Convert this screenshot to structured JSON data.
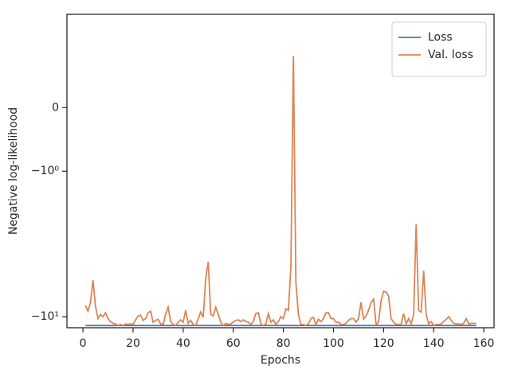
{
  "chart_data": {
    "type": "line",
    "xlabel": "Epochs",
    "ylabel": "Negative log-likelihood",
    "x": [
      1,
      2,
      3,
      4,
      5,
      6,
      7,
      8,
      9,
      10,
      11,
      12,
      13,
      14,
      15,
      16,
      17,
      18,
      19,
      20,
      21,
      22,
      23,
      24,
      25,
      26,
      27,
      28,
      29,
      30,
      31,
      32,
      33,
      34,
      35,
      36,
      37,
      38,
      39,
      40,
      41,
      42,
      43,
      44,
      45,
      46,
      47,
      48,
      49,
      50,
      51,
      52,
      53,
      54,
      55,
      56,
      57,
      58,
      59,
      60,
      61,
      62,
      63,
      64,
      65,
      66,
      67,
      68,
      69,
      70,
      71,
      72,
      73,
      74,
      75,
      76,
      77,
      78,
      79,
      80,
      81,
      82,
      83,
      84,
      85,
      86,
      87,
      88,
      89,
      90,
      91,
      92,
      93,
      94,
      95,
      96,
      97,
      98,
      99,
      100,
      101,
      102,
      103,
      104,
      105,
      106,
      107,
      108,
      109,
      110,
      111,
      112,
      113,
      114,
      115,
      116,
      117,
      118,
      119,
      120,
      121,
      122,
      123,
      124,
      125,
      126,
      127,
      128,
      129,
      130,
      131,
      132,
      133,
      134,
      135,
      136,
      137,
      138,
      139,
      140,
      141,
      142,
      143,
      144,
      145,
      146,
      147,
      148,
      149,
      150,
      151,
      152,
      153,
      154,
      155,
      156,
      157
    ],
    "series": [
      {
        "name": "Loss",
        "color": "#4c72b0",
        "values": [
          -11.5,
          -11.5,
          -11.5,
          -11.5,
          -11.5,
          -11.5,
          -11.5,
          -11.5,
          -11.5,
          -11.5,
          -11.5,
          -11.5,
          -11.5,
          -11.5,
          -11.5,
          -11.5,
          -11.5,
          -11.5,
          -11.5,
          -11.5,
          -11.5,
          -11.5,
          -11.5,
          -11.5,
          -11.5,
          -11.5,
          -11.5,
          -11.5,
          -11.5,
          -11.5,
          -11.5,
          -11.5,
          -11.5,
          -11.5,
          -11.5,
          -11.5,
          -11.5,
          -11.5,
          -11.5,
          -11.5,
          -11.5,
          -11.5,
          -11.5,
          -11.5,
          -11.5,
          -11.5,
          -11.5,
          -11.5,
          -11.5,
          -11.5,
          -11.5,
          -11.5,
          -11.5,
          -11.5,
          -11.5,
          -11.5,
          -11.5,
          -11.5,
          -11.5,
          -11.5,
          -11.5,
          -11.5,
          -11.5,
          -11.5,
          -11.5,
          -11.5,
          -11.5,
          -11.5,
          -11.5,
          -11.5,
          -11.5,
          -11.5,
          -11.5,
          -11.5,
          -11.5,
          -11.5,
          -11.5,
          -11.5,
          -11.5,
          -11.5,
          -11.5,
          -11.5,
          -11.5,
          -11.5,
          -11.5,
          -11.5,
          -11.5,
          -11.5,
          -11.5,
          -11.5,
          -11.5,
          -11.5,
          -11.5,
          -11.5,
          -11.5,
          -11.5,
          -11.5,
          -11.5,
          -11.5,
          -11.5,
          -11.5,
          -11.5,
          -11.5,
          -11.5,
          -11.5,
          -11.5,
          -11.5,
          -11.5,
          -11.5,
          -11.5,
          -11.5,
          -11.5,
          -11.5,
          -11.5,
          -11.5,
          -11.5,
          -11.5,
          -11.5,
          -11.5,
          -11.5,
          -11.5,
          -11.5,
          -11.5,
          -11.5,
          -11.5,
          -11.5,
          -11.5,
          -11.5,
          -11.5,
          -11.5,
          -11.5,
          -11.5,
          -11.5,
          -11.5,
          -11.5,
          -11.5,
          -11.5,
          -11.5,
          -11.5,
          -11.5,
          -11.5,
          -11.5,
          -11.5,
          -11.5,
          -11.5,
          -11.5,
          -11.5,
          -11.5,
          -11.5,
          -11.5,
          -11.5,
          -11.5,
          -11.5,
          -11.5,
          -11.5,
          -11.5,
          -11.5
        ]
      },
      {
        "name": "Val. loss",
        "color": "#dd8452",
        "values": [
          -8.38,
          -9.16,
          -7.97,
          -5.61,
          -8.49,
          -10.3,
          -9.63,
          -10.0,
          -9.39,
          -10.3,
          -10.8,
          -11.1,
          -11.2,
          -11.5,
          -11.3,
          -11.5,
          -11.2,
          -11.3,
          -11.2,
          -11.3,
          -10.5,
          -9.88,
          -9.75,
          -10.6,
          -10.3,
          -9.39,
          -9.16,
          -10.9,
          -10.6,
          -10.4,
          -11.2,
          -11.3,
          -9.63,
          -8.6,
          -10.8,
          -11.3,
          -11.5,
          -10.9,
          -10.5,
          -10.9,
          -9.04,
          -11.1,
          -10.6,
          -11.3,
          -11.5,
          -10.3,
          -9.28,
          -10.1,
          -5.47,
          -4.2,
          -9.63,
          -9.88,
          -8.6,
          -9.63,
          -10.9,
          -11.5,
          -11.1,
          -11.3,
          -11.2,
          -10.9,
          -10.6,
          -10.5,
          -10.8,
          -10.5,
          -10.8,
          -10.9,
          -11.3,
          -10.8,
          -9.51,
          -9.39,
          -11.2,
          -11.5,
          -11.2,
          -9.51,
          -10.9,
          -10.5,
          -11.3,
          -10.8,
          -10.0,
          -10.3,
          -8.82,
          -9.04,
          -4.53,
          0.81,
          -5.82,
          -9.63,
          -11.3,
          -11.3,
          -11.5,
          -11.2,
          -10.3,
          -10.1,
          -11.3,
          -10.4,
          -10.8,
          -10.3,
          -9.39,
          -9.39,
          -10.3,
          -10.3,
          -10.9,
          -10.9,
          -11.3,
          -11.3,
          -11.1,
          -10.6,
          -10.3,
          -10.3,
          -10.9,
          -10.3,
          -7.97,
          -10.4,
          -9.88,
          -9.04,
          -7.97,
          -7.58,
          -11.3,
          -10.9,
          -7.78,
          -6.69,
          -6.77,
          -7.21,
          -10.3,
          -10.9,
          -11.3,
          -11.3,
          -11.3,
          -9.51,
          -11.2,
          -10.3,
          -11.2,
          -9.63,
          -2.32,
          -9.04,
          -9.28,
          -4.82,
          -9.63,
          -11.2,
          -10.8,
          -11.5,
          -11.3,
          -11.3,
          -11.2,
          -10.8,
          -10.4,
          -10.0,
          -10.6,
          -11.1,
          -11.2,
          -11.2,
          -11.3,
          -11.1,
          -10.3,
          -11.2,
          -11.1,
          -11.1,
          -11.1
        ]
      }
    ],
    "xlim": [
      -6.4,
      164.1
    ],
    "xticks": [
      0,
      20,
      40,
      60,
      80,
      100,
      120,
      140,
      160
    ],
    "ylim": [
      -11.9,
      1.6
    ],
    "yscale": "symlog",
    "linthresh": 1,
    "yticks": [
      0,
      {
        "value": -1,
        "label": "−10⁰"
      },
      {
        "value": -10,
        "label": "−10¹"
      }
    ],
    "legend": "upper right"
  }
}
